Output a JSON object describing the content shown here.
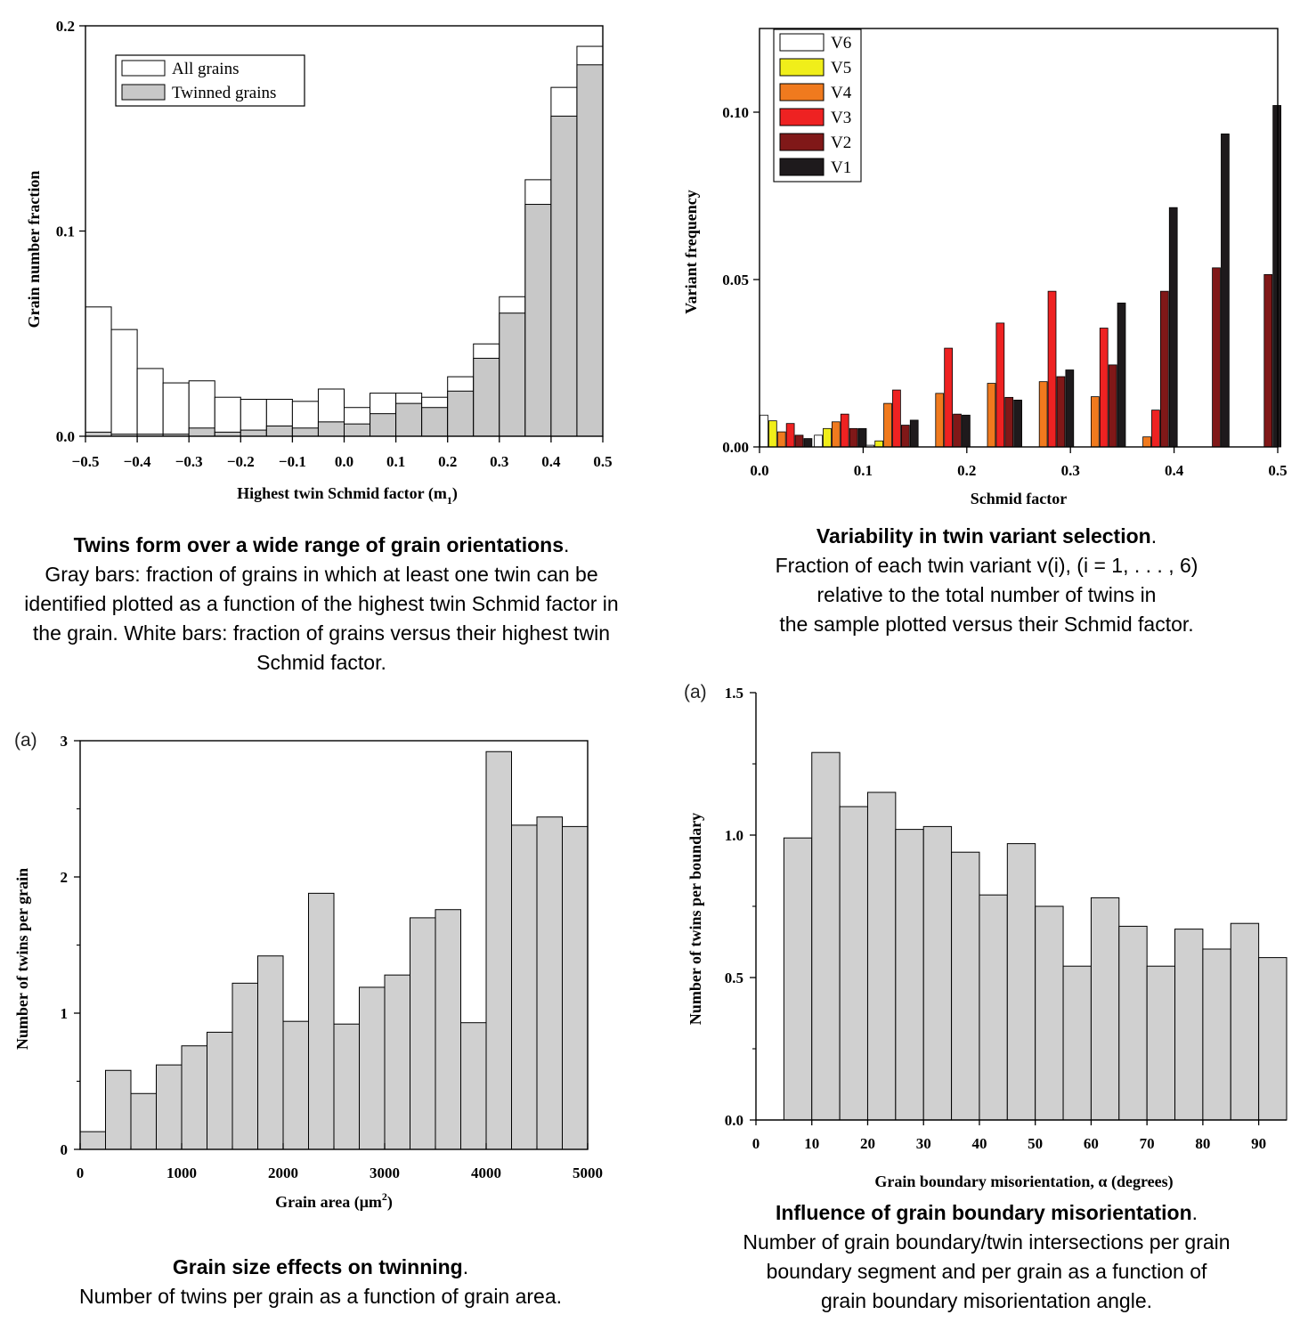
{
  "captions": {
    "p1": {
      "title": "Twins form over a wide range of grain orientations",
      "period": ".",
      "body": "Gray bars: fraction of grains in which at least one twin can be identified plotted as a function of the highest twin Schmid factor in the grain. White bars: fraction of grains versus their highest twin Schmid factor."
    },
    "p2": {
      "title": "Variability in twin variant selection",
      "period": ".",
      "body_lines": [
        "Fraction of each twin variant v(i), (i = 1, . . . , 6)",
        "relative to the total number of twins in",
        "the sample plotted versus their Schmid factor."
      ]
    },
    "p3": {
      "tag": "(a)",
      "title": "Grain size effects on twinning",
      "period": ".",
      "body": "Number of twins per grain as a function of grain area."
    },
    "p4": {
      "tag": "(a)",
      "title": "Influence of grain boundary misorientation",
      "period": ".",
      "body_lines": [
        "Number of grain boundary/twin intersections per grain",
        "boundary segment and per grain as a function of",
        "grain boundary misorientation angle."
      ]
    }
  },
  "chart_data": [
    {
      "type": "bar",
      "xlabel": "Highest twin Schmid factor (m",
      "xlabel_sub": "1",
      "xlabel_end": ")",
      "ylabel": "Grain number fraction",
      "xlim": [
        -0.5,
        0.5
      ],
      "ylim": [
        0,
        0.2
      ],
      "xticks": [
        -0.5,
        -0.4,
        -0.3,
        -0.2,
        -0.1,
        0.0,
        0.1,
        0.2,
        0.3,
        0.4,
        0.5
      ],
      "xtick_labels": [
        "−0.5",
        "−0.4",
        "−0.3",
        "−0.2",
        "−0.1",
        "0.0",
        "0.1",
        "0.2",
        "0.3",
        "0.4",
        "0.5"
      ],
      "yticks": [
        0,
        0.1,
        0.2
      ],
      "ytick_labels": [
        "0.0",
        "0.1",
        "0.2"
      ],
      "bin_width": 0.05,
      "bin_starts": [
        -0.5,
        -0.45,
        -0.4,
        -0.35,
        -0.3,
        -0.25,
        -0.2,
        -0.15,
        -0.1,
        -0.05,
        0.0,
        0.05,
        0.1,
        0.15,
        0.2,
        0.25,
        0.3,
        0.35,
        0.4,
        0.45
      ],
      "legend": {
        "position": "top-left",
        "entries": [
          "All grains",
          "Twinned grains"
        ]
      },
      "series": [
        {
          "name": "All grains",
          "color": "#ffffff",
          "values": [
            0.063,
            0.052,
            0.033,
            0.026,
            0.027,
            0.019,
            0.018,
            0.018,
            0.017,
            0.023,
            0.014,
            0.021,
            0.021,
            0.019,
            0.029,
            0.045,
            0.068,
            0.125,
            0.17,
            0.19
          ]
        },
        {
          "name": "Twinned grains",
          "color": "#c8c8c8",
          "values": [
            0.002,
            0.001,
            0.001,
            0.001,
            0.004,
            0.002,
            0.003,
            0.005,
            0.004,
            0.007,
            0.006,
            0.011,
            0.016,
            0.014,
            0.022,
            0.038,
            0.06,
            0.113,
            0.156,
            0.181
          ]
        }
      ]
    },
    {
      "type": "bar",
      "xlabel": "Schmid factor",
      "ylabel": "Variant  frequency",
      "xlim": [
        0,
        0.5
      ],
      "ylim": [
        0,
        0.125
      ],
      "xticks": [
        0,
        0.1,
        0.2,
        0.3,
        0.4,
        0.5
      ],
      "xtick_labels": [
        "0.0",
        "0.1",
        "0.2",
        "0.3",
        "0.4",
        "0.5"
      ],
      "yticks": [
        0,
        0.05,
        0.1
      ],
      "ytick_labels": [
        "0.00",
        "0.05",
        "0.10"
      ],
      "bar_width": 0.0085,
      "legend": {
        "position": "top-left",
        "entries": [
          "V6",
          "V5",
          "V4",
          "V3",
          "V2",
          "V1"
        ]
      },
      "groups": [
        {
          "x": 0.0,
          "bars": [
            {
              "variant": "V6",
              "value": 0.0095
            },
            {
              "variant": "V5",
              "value": 0.0078
            },
            {
              "variant": "V4",
              "value": 0.0045
            },
            {
              "variant": "V3",
              "value": 0.007
            },
            {
              "variant": "V2",
              "value": 0.0035
            },
            {
              "variant": "V1",
              "value": 0.0025
            }
          ]
        },
        {
          "x": 0.0525,
          "bars": [
            {
              "variant": "V6",
              "value": 0.0035
            },
            {
              "variant": "V5",
              "value": 0.0055
            },
            {
              "variant": "V4",
              "value": 0.0075
            },
            {
              "variant": "V3",
              "value": 0.0098
            },
            {
              "variant": "V2",
              "value": 0.0055
            },
            {
              "variant": "V1",
              "value": 0.0055
            }
          ]
        },
        {
          "x": 0.1025,
          "bars": [
            {
              "variant": "V6",
              "value": 0.0005
            },
            {
              "variant": "V5",
              "value": 0.0018
            },
            {
              "variant": "V4",
              "value": 0.013
            },
            {
              "variant": "V3",
              "value": 0.017
            },
            {
              "variant": "V2",
              "value": 0.0065
            },
            {
              "variant": "V1",
              "value": 0.008
            }
          ]
        },
        {
          "x": 0.1525,
          "bars": [
            {
              "variant": "V4",
              "value": 0.016
            },
            {
              "variant": "V3",
              "value": 0.0295
            },
            {
              "variant": "V2",
              "value": 0.0098
            },
            {
              "variant": "V1",
              "value": 0.0095
            }
          ]
        },
        {
          "x": 0.2025,
          "bars": [
            {
              "variant": "V4",
              "value": 0.019
            },
            {
              "variant": "V3",
              "value": 0.037
            },
            {
              "variant": "V2",
              "value": 0.0148
            },
            {
              "variant": "V1",
              "value": 0.014
            }
          ]
        },
        {
          "x": 0.2525,
          "bars": [
            {
              "variant": "V4",
              "value": 0.0195
            },
            {
              "variant": "V3",
              "value": 0.0465
            },
            {
              "variant": "V2",
              "value": 0.021
            },
            {
              "variant": "V1",
              "value": 0.023
            }
          ]
        },
        {
          "x": 0.3025,
          "bars": [
            {
              "variant": "V4",
              "value": 0.015
            },
            {
              "variant": "V3",
              "value": 0.0355
            },
            {
              "variant": "V2",
              "value": 0.0245
            },
            {
              "variant": "V1",
              "value": 0.043
            }
          ]
        },
        {
          "x": 0.3525,
          "bars": [
            {
              "variant": "V4",
              "value": 0.003
            },
            {
              "variant": "V3",
              "value": 0.011
            },
            {
              "variant": "V2",
              "value": 0.0465
            },
            {
              "variant": "V1",
              "value": 0.0715
            }
          ]
        },
        {
          "x": 0.4025,
          "bars": [
            {
              "variant": "V2",
              "value": 0.0535
            },
            {
              "variant": "V1",
              "value": 0.0935
            }
          ]
        },
        {
          "x": 0.4525,
          "bars": [
            {
              "variant": "V2",
              "value": 0.0515
            },
            {
              "variant": "V1",
              "value": 0.102
            }
          ]
        }
      ],
      "colors": {
        "V6": "#ffffff",
        "V5": "#f0ee1a",
        "V4": "#f07a1e",
        "V3": "#ee2222",
        "V2": "#801818",
        "V1": "#1e1a1c"
      },
      "group_offsets": {
        "V6": 0,
        "V5": 1,
        "V4": 2,
        "V3": 3,
        "V2": 4,
        "V1": 5
      }
    },
    {
      "type": "bar",
      "xlabel": "Grain area (μm",
      "xlabel_sup": "2",
      "xlabel_end": ")",
      "ylabel": "Number of twins per grain",
      "xlim": [
        0,
        5000
      ],
      "ylim": [
        0,
        3
      ],
      "xticks": [
        0,
        1000,
        2000,
        3000,
        4000,
        5000
      ],
      "xtick_labels": [
        "0",
        "1000",
        "2000",
        "3000",
        "4000",
        "5000"
      ],
      "yticks": [
        0,
        1,
        2,
        3
      ],
      "ytick_labels": [
        "0",
        "1",
        "2",
        "3"
      ],
      "bin_width": 250,
      "bin_starts": [
        0,
        250,
        500,
        750,
        1000,
        1250,
        1500,
        1750,
        2000,
        2250,
        2500,
        2750,
        3000,
        3250,
        3500,
        3750,
        4000,
        4250,
        4500,
        4750
      ],
      "color": "#d0d0d0",
      "values": [
        0.13,
        0.58,
        0.41,
        0.62,
        0.76,
        0.86,
        1.22,
        1.42,
        0.94,
        1.88,
        0.92,
        1.19,
        1.28,
        1.7,
        1.76,
        0.93,
        2.92,
        2.38,
        2.44,
        2.37
      ]
    },
    {
      "type": "bar",
      "xlabel": "Grain boundary misorientation, α (degrees)",
      "ylabel": "Number of twins per boundary",
      "xlim": [
        0,
        95
      ],
      "ylim": [
        0,
        1.5
      ],
      "xticks": [
        0,
        10,
        20,
        30,
        40,
        50,
        60,
        70,
        80,
        90
      ],
      "xtick_labels": [
        "0",
        "10",
        "20",
        "30",
        "40",
        "50",
        "60",
        "70",
        "80",
        "90"
      ],
      "yticks": [
        0,
        0.5,
        1.0,
        1.5
      ],
      "ytick_labels": [
        "0.0",
        "0.5",
        "1.0",
        "1.5"
      ],
      "bin_width": 5,
      "bin_starts": [
        5,
        10,
        15,
        20,
        25,
        30,
        35,
        40,
        45,
        50,
        55,
        60,
        65,
        70,
        75,
        80,
        85,
        90
      ],
      "color": "#d0d0d0",
      "values": [
        0.99,
        1.29,
        1.1,
        1.15,
        1.02,
        1.03,
        0.94,
        0.79,
        0.97,
        0.75,
        0.54,
        0.78,
        0.68,
        0.54,
        0.67,
        0.6,
        0.69,
        0.57
      ]
    }
  ]
}
